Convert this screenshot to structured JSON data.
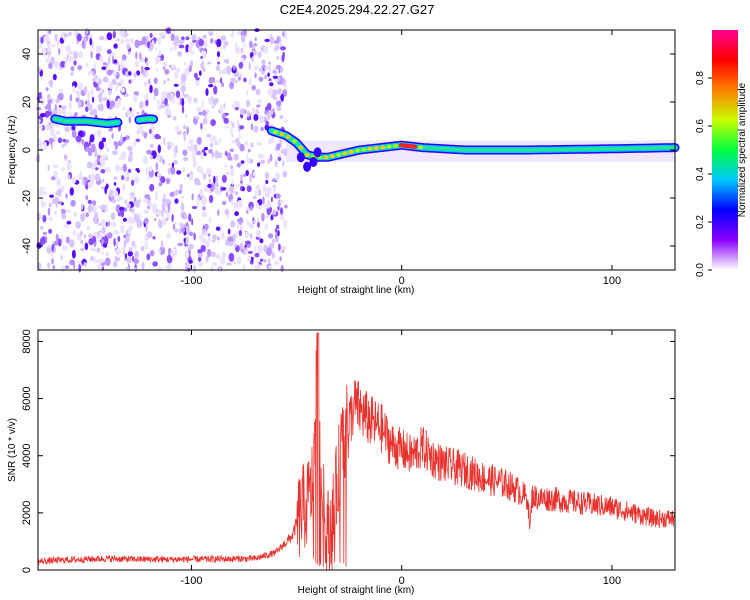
{
  "title": "C2E4.2025.294.22.27.G27",
  "chart_data": [
    {
      "type": "heatmap",
      "xlabel": "Height of straight line (km)",
      "ylabel": "Frequency (Hz)",
      "xlim": [
        -173,
        130
      ],
      "ylim": [
        -50,
        50
      ],
      "xticks": [
        -100,
        0,
        100
      ],
      "yticks": [
        -40,
        -20,
        0,
        20,
        40
      ],
      "colorbar": {
        "label": "Normalized spectral amplitude",
        "range": [
          0,
          1
        ],
        "ticks": [
          0.0,
          0.2,
          0.4,
          0.6,
          0.8
        ],
        "tick_labels": [
          "0.0",
          "0.2",
          "0.4",
          "0.6",
          "0.8"
        ],
        "colormap": [
          "#ffffff",
          "#e6d6ff",
          "#9b6bff",
          "#4b00ff",
          "#0000ff",
          "#00bfff",
          "#00ff7f",
          "#7fff00",
          "#ffff00",
          "#ff7f00",
          "#ff0000",
          "#ff00ff"
        ]
      },
      "noise_region_x": [
        -173,
        -55
      ],
      "ridge": [
        {
          "x": -165,
          "y": 13
        },
        {
          "x": -160,
          "y": 12
        },
        {
          "x": -150,
          "y": 12
        },
        {
          "x": -140,
          "y": 11
        },
        {
          "x": -130,
          "y": 12
        },
        {
          "x": -120,
          "y": 13
        },
        {
          "x": -62,
          "y": 8
        },
        {
          "x": -55,
          "y": 6
        },
        {
          "x": -50,
          "y": 3
        },
        {
          "x": -45,
          "y": -2
        },
        {
          "x": -40,
          "y": -3
        },
        {
          "x": -35,
          "y": -3
        },
        {
          "x": -30,
          "y": -2
        },
        {
          "x": -20,
          "y": 0
        },
        {
          "x": -10,
          "y": 1
        },
        {
          "x": 0,
          "y": 2
        },
        {
          "x": 10,
          "y": 1
        },
        {
          "x": 30,
          "y": 0
        },
        {
          "x": 60,
          "y": 0
        },
        {
          "x": 100,
          "y": 0.5
        },
        {
          "x": 130,
          "y": 1
        }
      ],
      "grid": false
    },
    {
      "type": "line",
      "xlabel": "Height of straight line (km)",
      "ylabel": "SNR (10 * v/v)",
      "xlim": [
        -173,
        130
      ],
      "ylim": [
        0,
        8400
      ],
      "xticks": [
        -100,
        0,
        100
      ],
      "yticks": [
        0,
        2000,
        4000,
        6000,
        8000
      ],
      "color": "#e8322e",
      "series": [
        {
          "x": [
            -173,
            -160,
            -150,
            -140,
            -130,
            -110,
            -90,
            -70,
            -60,
            -52,
            -48,
            -44,
            -42,
            -40,
            -39,
            -38,
            -36,
            -34,
            -32,
            -30,
            -28,
            -25,
            -22,
            -20,
            -15,
            -10,
            -5,
            0,
            5,
            10,
            15,
            20,
            30,
            40,
            50,
            55,
            60,
            61,
            62,
            65,
            70,
            80,
            90,
            100,
            110,
            120,
            130
          ],
          "y": [
            300,
            350,
            380,
            400,
            380,
            370,
            380,
            400,
            600,
            1200,
            2000,
            2500,
            3200,
            8300,
            4500,
            2600,
            1600,
            1100,
            2200,
            3500,
            4500,
            5200,
            5800,
            5600,
            5200,
            5000,
            4400,
            4200,
            4000,
            4300,
            3900,
            3700,
            3500,
            3200,
            3000,
            2800,
            2500,
            1400,
            2600,
            2500,
            2500,
            2400,
            2300,
            2200,
            2000,
            1800,
            1800
          ]
        }
      ],
      "grid": false
    }
  ]
}
